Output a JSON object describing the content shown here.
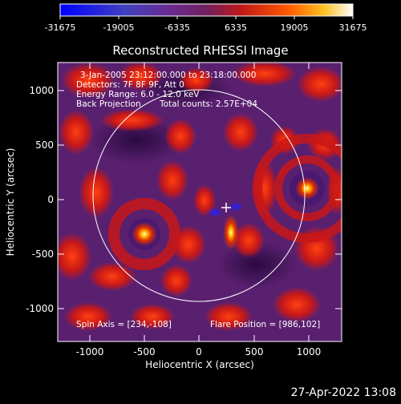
{
  "colorbar": {
    "ticks": [
      "-31675",
      "-19005",
      "-6335",
      "6335",
      "19005",
      "31675"
    ]
  },
  "title": "Reconstructed RHESSI Image",
  "info": {
    "line1": "3-Jan-2005 23:12:00.000 to 23:18:00.000",
    "line2": "Detectors: 7F 8F 9F, Att 0",
    "line3": "Energy Range: 6.0 - 12.0 keV",
    "line4_left": "Back Projection",
    "line4_right": "Total counts: 2.57E+04"
  },
  "bottom_info": {
    "spin_axis": "Spin Axis = [234,-108]",
    "flare_position": "Flare Position = [986,102]"
  },
  "axes": {
    "xlabel": "Heliocentric X (arcsec)",
    "ylabel": "Heliocentric Y (arcsec)",
    "xticks": [
      "-1000",
      "-500",
      "0",
      "500",
      "1000"
    ],
    "yticks": [
      "1000",
      "500",
      "0",
      "-500",
      "-1000"
    ],
    "xrange": [
      -1300,
      1300
    ],
    "yrange": [
      -1300,
      1300
    ]
  },
  "timestamp": "27-Apr-2022 13:08",
  "colors": {
    "background": "#000000",
    "map_base": "#5a2070",
    "limb": "#ffffff"
  }
}
